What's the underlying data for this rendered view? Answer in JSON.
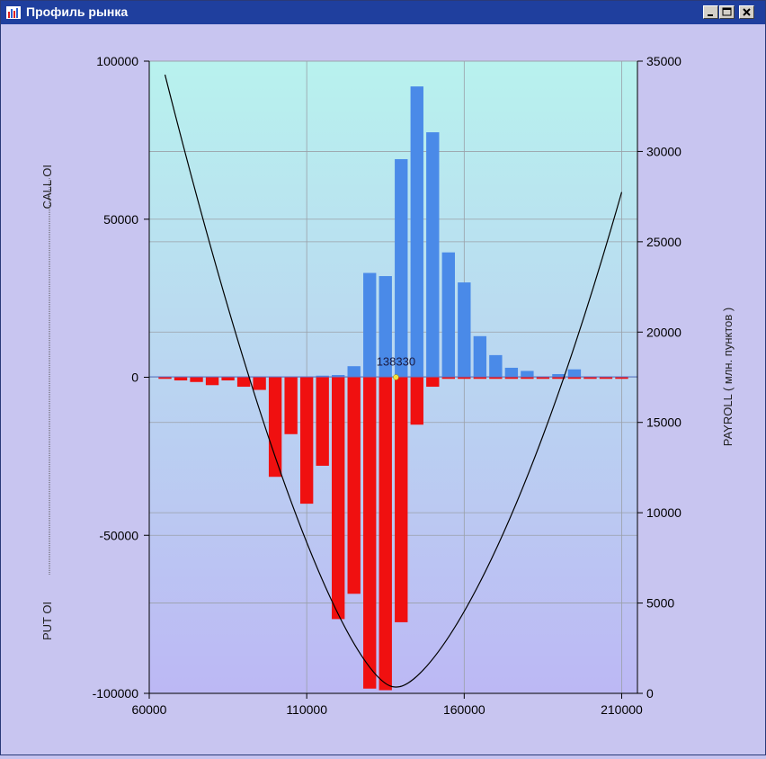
{
  "window": {
    "title": "Профиль рынка",
    "icons": {
      "app": "chart-app-icon",
      "minimize": "minimize-icon",
      "maximize": "maximize-icon",
      "close": "close-icon"
    }
  },
  "chart_data": {
    "type": "bar",
    "x_ticks": [
      "60000",
      "110000",
      "160000",
      "210000"
    ],
    "x_tick_values": [
      60000,
      110000,
      160000,
      210000
    ],
    "xlim": [
      60000,
      215000
    ],
    "left_ticks": [
      "100000",
      "50000",
      "0",
      "-50000",
      "-100000"
    ],
    "left_tick_values": [
      100000,
      50000,
      0,
      -50000,
      -100000
    ],
    "ylim": [
      -100000,
      100000
    ],
    "right_ticks": [
      "35000",
      "30000",
      "25000",
      "20000",
      "15000",
      "10000",
      "5000",
      "0"
    ],
    "right_tick_values": [
      35000,
      30000,
      25000,
      20000,
      15000,
      10000,
      5000,
      0
    ],
    "y2lim": [
      0,
      35000
    ],
    "left_label_top": "CALL OI",
    "left_label_bottom": "PUT OI",
    "right_label": "PAYROLL  ( млн. пунктов )",
    "marker_label": "138330",
    "marker_x": 138330,
    "bin_width": 5000,
    "call_color": "#4a8ae8",
    "put_color": "#f01010",
    "plot_bg_top": "#b8f2ee",
    "plot_bg_bottom": "#bcb8f4",
    "grid": true,
    "series": [
      {
        "name": "CALL OI",
        "x": [
          70000,
          75000,
          80000,
          85000,
          90000,
          95000,
          100000,
          105000,
          110000,
          115000,
          120000,
          125000,
          130000,
          135000,
          140000,
          145000,
          150000,
          155000,
          160000,
          165000,
          170000,
          175000,
          180000,
          185000,
          190000,
          195000,
          200000,
          205000,
          210000
        ],
        "values": [
          0,
          0,
          0,
          0,
          0,
          0,
          0,
          0,
          0,
          500,
          700,
          3500,
          33000,
          32000,
          69000,
          92000,
          77500,
          39500,
          30000,
          13000,
          7000,
          3000,
          2000,
          0,
          1000,
          2500,
          0,
          0,
          0
        ]
      },
      {
        "name": "PUT OI",
        "x": [
          65000,
          70000,
          75000,
          80000,
          85000,
          90000,
          95000,
          100000,
          105000,
          110000,
          115000,
          120000,
          125000,
          130000,
          135000,
          140000,
          145000,
          150000,
          155000,
          160000,
          165000,
          170000,
          175000,
          180000,
          185000,
          190000,
          195000,
          200000,
          205000,
          210000
        ],
        "values": [
          -500,
          -1000,
          -1500,
          -2500,
          -1000,
          -3000,
          -4000,
          -31500,
          -18000,
          -40000,
          -28000,
          -76500,
          -68500,
          -98500,
          -99000,
          -77500,
          -15000,
          -3000,
          -500,
          -500,
          -500,
          -500,
          -500,
          -500,
          -500,
          -500,
          -500,
          -500,
          -500,
          -500
        ]
      },
      {
        "name": "PAYROLL",
        "type": "line",
        "x": [
          65000,
          138330,
          210000
        ],
        "values": [
          34250,
          350,
          27750
        ]
      }
    ]
  }
}
